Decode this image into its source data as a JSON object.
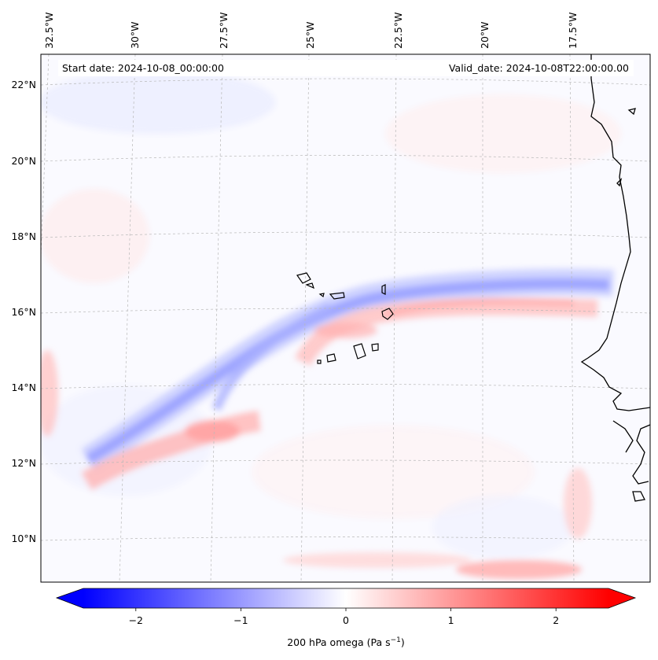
{
  "header": {
    "start_date": "Start date: 2024-10-08_00:00:00",
    "valid_date": "Valid_date: 2024-10-08T22:00:00.00"
  },
  "axes": {
    "longitude_labels": [
      "32.5°W",
      "30°W",
      "27.5°W",
      "25°W",
      "22.5°W",
      "20°W",
      "17.5°W"
    ],
    "latitude_labels": [
      "22°N",
      "20°N",
      "18°N",
      "16°N",
      "14°N",
      "12°N",
      "10°N"
    ]
  },
  "colorbar": {
    "ticks": [
      "−2",
      "−1",
      "0",
      "1",
      "2"
    ],
    "tick_values": [
      -2,
      -1,
      0,
      1,
      2
    ],
    "range": [
      -2.5,
      2.5
    ],
    "label_main": "200 hPa omega (Pa s",
    "label_exp": "−1",
    "label_close": ")",
    "color_negative": "#0000ff",
    "color_zero": "#ffffff",
    "color_positive": "#ff0000"
  }
}
